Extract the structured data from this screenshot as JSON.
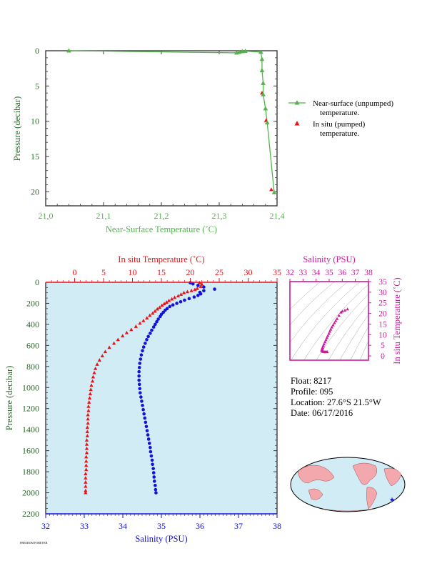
{
  "colors": {
    "near_surface": "#55b34e",
    "in_situ": "#e8141a",
    "salinity": "#1212d8",
    "salinity_axis": "#cc1a9a",
    "axes_dark": "#3a3a3a",
    "plot_bg": "#d2ecf5",
    "label_green": "#2d6a2d"
  },
  "float_info": {
    "float": "Float:  8217",
    "profile": "Profile:  095",
    "location": "Location:  27.6°S  21.5°W",
    "date": "Date:  06/17/2016"
  },
  "footer_text": "FREEDOM FOREVER",
  "map": {
    "icon": "world-map-icon",
    "marker": "star"
  },
  "chart_data": [
    {
      "type": "line",
      "name": "near-surface",
      "xlabel": "Near-Surface Temperature (˚C)",
      "ylabel": "Pressure (decibar)",
      "xlim": [
        21.0,
        21.4
      ],
      "ylim": [
        0,
        22
      ],
      "y_inverted": true,
      "x_ticks": [
        "21,0",
        "21,1",
        "21,2",
        "21,3",
        "21,4"
      ],
      "y_ticks": [
        "0",
        "5",
        "10",
        "15",
        "20"
      ],
      "legend": [
        {
          "line1": "Near-surface (unpumped)",
          "line2": "temperature."
        },
        {
          "line1": "In situ (pumped)",
          "line2": "temperature."
        }
      ],
      "legend_position": "right",
      "series": [
        {
          "marker": "triangle",
          "line": true,
          "x": [
            21.04,
            21.33,
            21.335,
            21.34,
            21.345,
            21.372,
            21.374,
            21.374,
            21.376,
            21.376,
            21.38,
            21.383,
            21.395
          ],
          "y": [
            0.0,
            0.3,
            0.2,
            0.1,
            0.05,
            0.2,
            1.2,
            2.8,
            4.6,
            6.2,
            8.2,
            10.2,
            20.1
          ]
        },
        {
          "marker": "triangle",
          "line": false,
          "x": [
            21.374,
            21.381,
            21.39
          ],
          "y": [
            6.0,
            9.9,
            19.7
          ]
        }
      ]
    },
    {
      "type": "scatter",
      "name": "profile",
      "ylabel": "Pressure (decibar)",
      "top_axis_label": "In situ Temperature (˚C)",
      "bottom_axis_label": "Salinity (PSU)",
      "temp_lim": [
        -5,
        35
      ],
      "sal_lim": [
        32,
        38
      ],
      "ylim": [
        0,
        2200
      ],
      "y_inverted": true,
      "temp_ticks": [
        "0",
        "5",
        "10",
        "15",
        "20",
        "25",
        "30",
        "35"
      ],
      "sal_ticks": [
        "32",
        "33",
        "34",
        "35",
        "36",
        "37",
        "38"
      ],
      "y_ticks": [
        "0",
        "200",
        "400",
        "600",
        "800",
        "1000",
        "1200",
        "1400",
        "1600",
        "1800",
        "2000",
        "2200"
      ],
      "series": [
        {
          "variable": "temperature",
          "points": [
            [
              21.6,
              5
            ],
            [
              22.0,
              20
            ],
            [
              21.8,
              40
            ],
            [
              21.2,
              60
            ],
            [
              20.8,
              70
            ],
            [
              20.2,
              80
            ],
            [
              19.5,
              90
            ],
            [
              18.9,
              100
            ],
            [
              18.4,
              115
            ],
            [
              17.9,
              130
            ],
            [
              17.3,
              145
            ],
            [
              16.8,
              160
            ],
            [
              16.3,
              175
            ],
            [
              15.9,
              190
            ],
            [
              15.5,
              205
            ],
            [
              15.1,
              220
            ],
            [
              14.7,
              240
            ],
            [
              14.3,
              255
            ],
            [
              13.9,
              275
            ],
            [
              13.5,
              295
            ],
            [
              13.0,
              315
            ],
            [
              12.5,
              340
            ],
            [
              11.9,
              365
            ],
            [
              11.3,
              390
            ],
            [
              10.6,
              420
            ],
            [
              9.8,
              450
            ],
            [
              9.0,
              480
            ],
            [
              8.3,
              510
            ],
            [
              7.5,
              545
            ],
            [
              6.8,
              580
            ],
            [
              6.0,
              620
            ],
            [
              5.3,
              660
            ],
            [
              4.8,
              700
            ],
            [
              4.3,
              740
            ],
            [
              3.9,
              780
            ],
            [
              3.6,
              820
            ],
            [
              3.4,
              860
            ],
            [
              3.2,
              900
            ],
            [
              3.1,
              940
            ],
            [
              2.9,
              980
            ],
            [
              2.8,
              1020
            ],
            [
              2.7,
              1060
            ],
            [
              2.6,
              1100
            ],
            [
              2.5,
              1140
            ],
            [
              2.4,
              1180
            ],
            [
              2.4,
              1220
            ],
            [
              2.3,
              1260
            ],
            [
              2.3,
              1300
            ],
            [
              2.3,
              1340
            ],
            [
              2.2,
              1380
            ],
            [
              2.2,
              1420
            ],
            [
              2.2,
              1460
            ],
            [
              2.1,
              1500
            ],
            [
              2.1,
              1540
            ],
            [
              2.1,
              1580
            ],
            [
              2.1,
              1620
            ],
            [
              2.0,
              1660
            ],
            [
              2.0,
              1700
            ],
            [
              2.0,
              1740
            ],
            [
              2.0,
              1780
            ],
            [
              1.9,
              1820
            ],
            [
              1.9,
              1860
            ],
            [
              1.9,
              1900
            ],
            [
              1.9,
              1940
            ],
            [
              1.9,
              1980
            ],
            [
              1.9,
              2000
            ]
          ]
        },
        {
          "variable": "salinity",
          "points": [
            [
              35.75,
              5
            ],
            [
              35.82,
              15
            ],
            [
              35.95,
              30
            ],
            [
              36.1,
              45
            ],
            [
              36.38,
              65
            ],
            [
              36.1,
              80
            ],
            [
              36.0,
              95
            ],
            [
              36.02,
              110
            ],
            [
              35.95,
              125
            ],
            [
              35.85,
              140
            ],
            [
              35.72,
              155
            ],
            [
              35.6,
              170
            ],
            [
              35.5,
              185
            ],
            [
              35.4,
              200
            ],
            [
              35.3,
              215
            ],
            [
              35.22,
              230
            ],
            [
              35.15,
              250
            ],
            [
              35.1,
              265
            ],
            [
              35.05,
              285
            ],
            [
              35.0,
              305
            ],
            [
              34.97,
              325
            ],
            [
              34.92,
              350
            ],
            [
              34.88,
              375
            ],
            [
              34.84,
              400
            ],
            [
              34.8,
              425
            ],
            [
              34.75,
              455
            ],
            [
              34.71,
              485
            ],
            [
              34.66,
              515
            ],
            [
              34.62,
              545
            ],
            [
              34.58,
              580
            ],
            [
              34.54,
              615
            ],
            [
              34.51,
              650
            ],
            [
              34.48,
              690
            ],
            [
              34.46,
              730
            ],
            [
              34.44,
              770
            ],
            [
              34.43,
              810
            ],
            [
              34.42,
              850
            ],
            [
              34.42,
              890
            ],
            [
              34.42,
              930
            ],
            [
              34.43,
              970
            ],
            [
              34.44,
              1010
            ],
            [
              34.45,
              1050
            ],
            [
              34.47,
              1090
            ],
            [
              34.49,
              1130
            ],
            [
              34.51,
              1170
            ],
            [
              34.53,
              1210
            ],
            [
              34.55,
              1250
            ],
            [
              34.57,
              1290
            ],
            [
              34.59,
              1330
            ],
            [
              34.61,
              1370
            ],
            [
              34.63,
              1410
            ],
            [
              34.65,
              1450
            ],
            [
              34.67,
              1490
            ],
            [
              34.69,
              1530
            ],
            [
              34.71,
              1570
            ],
            [
              34.72,
              1610
            ],
            [
              34.74,
              1650
            ],
            [
              34.76,
              1690
            ],
            [
              34.77,
              1730
            ],
            [
              34.79,
              1770
            ],
            [
              34.8,
              1810
            ],
            [
              34.81,
              1850
            ],
            [
              34.82,
              1890
            ],
            [
              34.84,
              1930
            ],
            [
              34.85,
              1970
            ],
            [
              34.86,
              2000
            ]
          ]
        }
      ]
    },
    {
      "type": "scatter",
      "name": "ts-inset",
      "top_axis_label": "Salinity (PSU)",
      "right_axis_label": "In situ Temperature (˚C)",
      "sal_lim": [
        32,
        38
      ],
      "temp_lim": [
        -2,
        35
      ],
      "sal_ticks": [
        "32",
        "33",
        "34",
        "35",
        "36",
        "37",
        "38"
      ],
      "temp_ticks": [
        "0",
        "5",
        "10",
        "15",
        "20",
        "25",
        "30",
        "35"
      ],
      "points": [
        [
          36.4,
          22.0
        ],
        [
          36.2,
          21.5
        ],
        [
          36.0,
          21.0
        ],
        [
          35.9,
          20.5
        ],
        [
          35.75,
          19.0
        ],
        [
          35.6,
          17.5
        ],
        [
          35.5,
          16.5
        ],
        [
          35.4,
          15.5
        ],
        [
          35.3,
          14.5
        ],
        [
          35.2,
          13.5
        ],
        [
          35.12,
          12.5
        ],
        [
          35.05,
          11.5
        ],
        [
          34.98,
          10.5
        ],
        [
          34.9,
          9.5
        ],
        [
          34.82,
          8.5
        ],
        [
          34.75,
          7.5
        ],
        [
          34.68,
          6.5
        ],
        [
          34.6,
          5.5
        ],
        [
          34.55,
          4.8
        ],
        [
          34.5,
          4.0
        ],
        [
          34.47,
          3.5
        ],
        [
          34.45,
          3.0
        ],
        [
          34.44,
          2.6
        ],
        [
          34.46,
          2.3
        ],
        [
          34.5,
          2.1
        ],
        [
          34.55,
          2.0
        ],
        [
          34.62,
          1.9
        ],
        [
          34.7,
          1.9
        ],
        [
          34.78,
          1.9
        ],
        [
          34.85,
          1.9
        ]
      ]
    }
  ]
}
